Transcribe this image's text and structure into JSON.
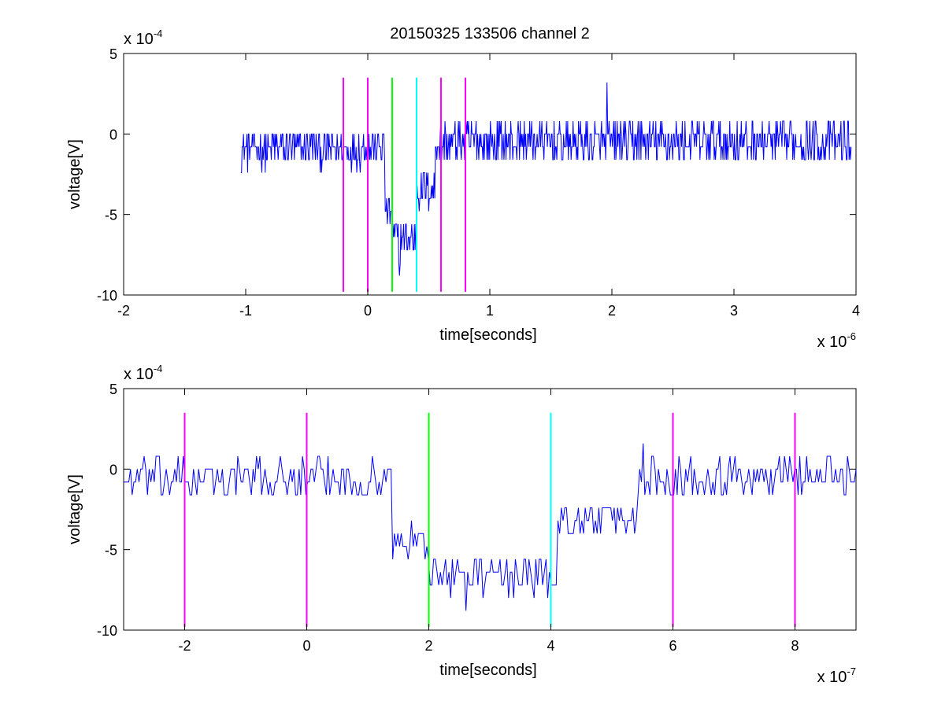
{
  "chart_data": [
    {
      "type": "line",
      "title": "20150325 133506 channel 2",
      "xlabel": "time[seconds]",
      "ylabel": "voltage[V]",
      "xlim": [
        -2,
        4
      ],
      "ylim": [
        -10,
        5
      ],
      "x_scale_label": "x 10",
      "x_scale_exp": "-6",
      "y_scale_label": "x 10",
      "y_scale_exp": "-4",
      "x_ticks": [
        -2,
        -1,
        0,
        1,
        2,
        3,
        4
      ],
      "x_tick_labels": [
        "-2",
        "-1",
        "0",
        "1",
        "2",
        "3",
        "4"
      ],
      "y_ticks": [
        -10,
        -5,
        0,
        5
      ],
      "y_tick_labels": [
        "-10",
        "-5",
        "0",
        "5"
      ],
      "grid": false,
      "signal": {
        "color": "#0000ff",
        "x_start": -1.04,
        "x_end": 3.96,
        "segments": [
          {
            "x0": -1.04,
            "x1": 0.14,
            "mean": -0.9,
            "amp": 1.2
          },
          {
            "x0": 0.14,
            "x1": 0.2,
            "mean": -4.8,
            "amp": 1.0
          },
          {
            "x0": 0.2,
            "x1": 0.4,
            "mean": -6.5,
            "amp": 1.3
          },
          {
            "x0": 0.4,
            "x1": 0.55,
            "mean": -3.5,
            "amp": 1.2
          },
          {
            "x0": 0.55,
            "x1": 3.96,
            "mean": -0.5,
            "amp": 1.3
          }
        ],
        "extremes": [
          {
            "x": 1.96,
            "y": 3.2
          },
          {
            "x": 0.26,
            "y": -8.8
          }
        ]
      },
      "markers": [
        {
          "x": -0.2,
          "color": "#ff00ff"
        },
        {
          "x": 0.0,
          "color": "#ff00ff"
        },
        {
          "x": 0.2,
          "color": "#00ff00"
        },
        {
          "x": 0.4,
          "color": "#00ffff"
        },
        {
          "x": 0.6,
          "color": "#ff00ff"
        },
        {
          "x": 0.8,
          "color": "#ff00ff"
        }
      ],
      "marker_range": [
        -9.8,
        3.5
      ]
    },
    {
      "type": "line",
      "title": "",
      "xlabel": "time[seconds]",
      "ylabel": "voltage[V]",
      "xlim": [
        -3,
        9
      ],
      "ylim": [
        -10,
        5
      ],
      "x_scale_label": "x 10",
      "x_scale_exp": "-7",
      "y_scale_label": "x 10",
      "y_scale_exp": "-4",
      "x_ticks": [
        -2,
        0,
        2,
        4,
        6,
        8
      ],
      "x_tick_labels": [
        "-2",
        "0",
        "2",
        "4",
        "6",
        "8"
      ],
      "y_ticks": [
        -10,
        -5,
        0,
        5
      ],
      "y_tick_labels": [
        "-10",
        "-5",
        "0",
        "5"
      ],
      "grid": false,
      "signal": {
        "color": "#0000ff",
        "x_start": -3,
        "x_end": 9,
        "segments": [
          {
            "x0": -3,
            "x1": 1.4,
            "mean": -0.6,
            "amp": 1.2
          },
          {
            "x0": 1.4,
            "x1": 2.0,
            "mean": -4.5,
            "amp": 1.0
          },
          {
            "x0": 2.0,
            "x1": 4.1,
            "mean": -6.6,
            "amp": 1.3
          },
          {
            "x0": 4.1,
            "x1": 5.4,
            "mean": -3.2,
            "amp": 1.2
          },
          {
            "x0": 5.4,
            "x1": 9,
            "mean": -0.4,
            "amp": 1.2
          }
        ],
        "extremes": [
          {
            "x": 2.6,
            "y": -8.8
          },
          {
            "x": 5.5,
            "y": 1.6
          }
        ]
      },
      "markers": [
        {
          "x": -2,
          "color": "#ff00ff"
        },
        {
          "x": 0,
          "color": "#ff00ff"
        },
        {
          "x": 2,
          "color": "#00ff00"
        },
        {
          "x": 4,
          "color": "#00ffff"
        },
        {
          "x": 6,
          "color": "#ff00ff"
        },
        {
          "x": 8,
          "color": "#ff00ff"
        }
      ],
      "marker_range": [
        -9.8,
        3.5
      ]
    }
  ]
}
